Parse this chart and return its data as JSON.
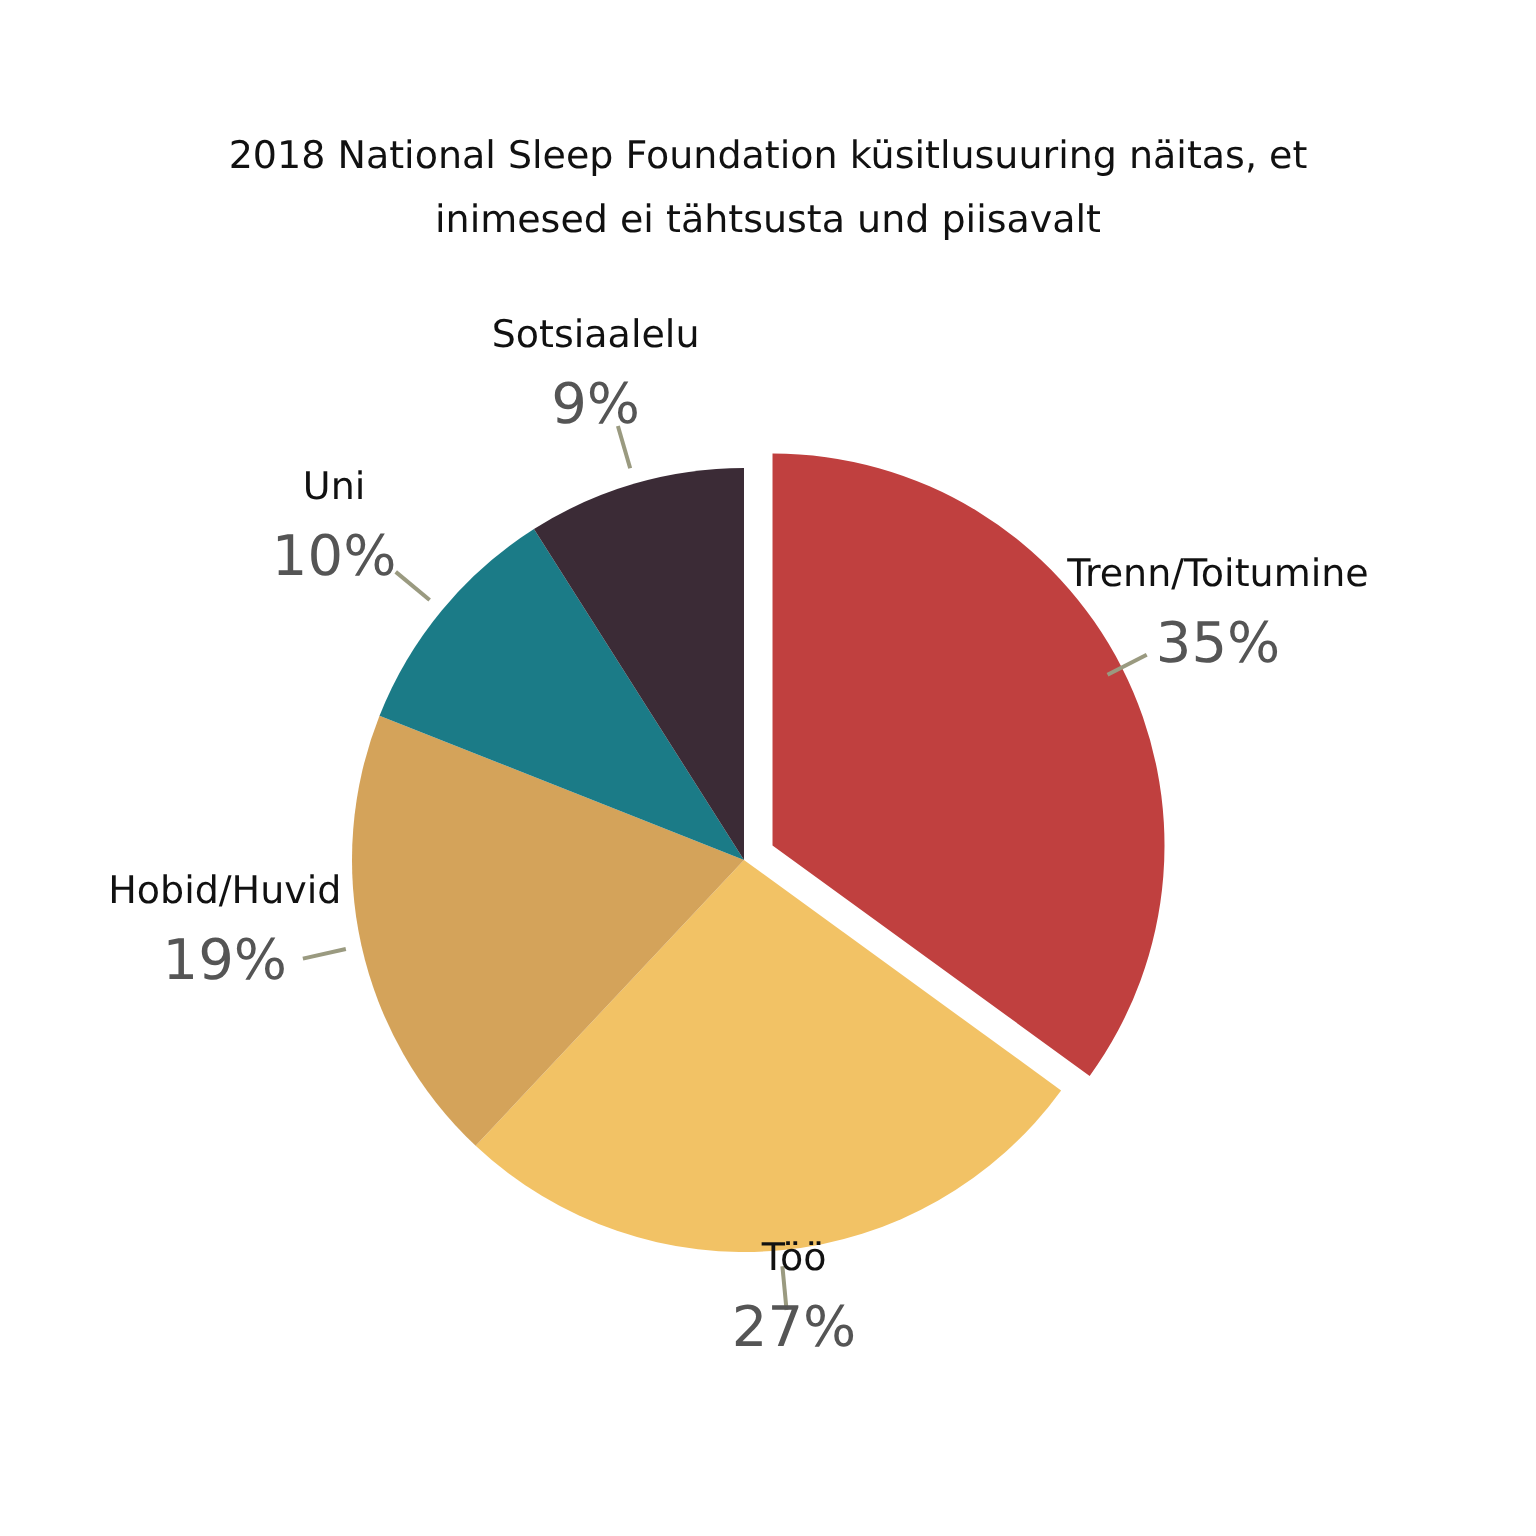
{
  "chart_data": {
    "type": "pie",
    "title": "2018 National Sleep Foundation küsitlusuuring näitas, et\ninimesed ei tähtsusta und piisavalt",
    "categories": [
      "Trenn/Toitumine",
      "Töö",
      "Hobid/Huvid",
      "Uni",
      "Sotsiaalelu"
    ],
    "values": [
      35,
      27,
      19,
      10,
      9
    ],
    "colors": [
      "#c0403f",
      "#f2c265",
      "#d4a35a",
      "#1b7b87",
      "#3b2b36"
    ],
    "value_labels": [
      "35%",
      "27%",
      "19%",
      "10%",
      "9%"
    ]
  }
}
